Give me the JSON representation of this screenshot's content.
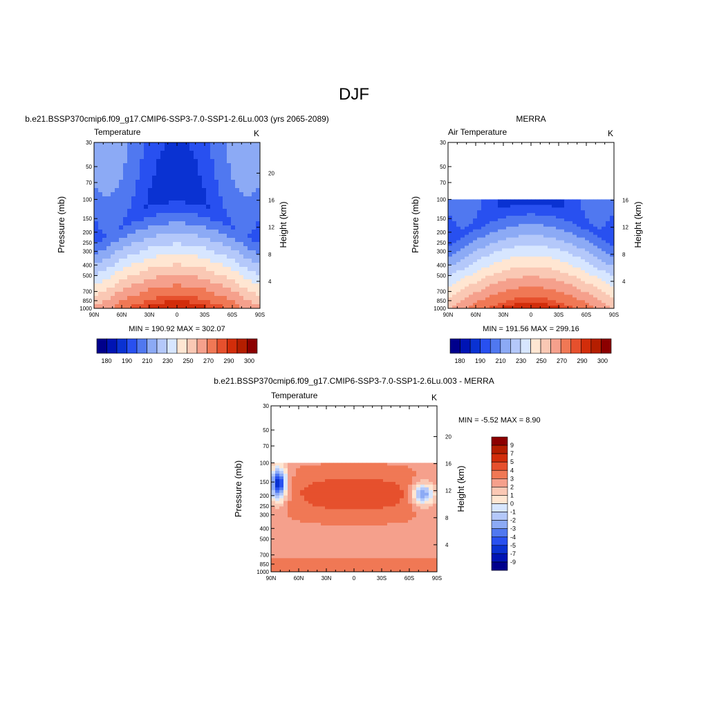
{
  "figure": {
    "title": "DJF"
  },
  "chart_data": [
    {
      "type": "heatmap",
      "panel_title": "b.e21.BSSP370cmip6.f09_g17.CMIP6-SSP3-7.0-SSP1-2.6Lu.003 (yrs 2065-2089)",
      "left_label": "Temperature",
      "units": "K",
      "ylabel": "Pressure (mb)",
      "ylabel_right": "Height (km)",
      "x_ticks": [
        "90N",
        "60N",
        "30N",
        "0",
        "30S",
        "60S",
        "90S"
      ],
      "y_ticks": [
        "30",
        "50",
        "70",
        "100",
        "150",
        "200",
        "250",
        "300",
        "400",
        "500",
        "700",
        "850",
        "1000"
      ],
      "height_ticks": [
        "20",
        "16",
        "12",
        "8",
        "4"
      ],
      "stats": "MIN = 190.92  MAX = 302.07",
      "min": 190.92,
      "max": 302.07,
      "data_top_pressure": 30
    },
    {
      "type": "heatmap",
      "panel_title": "MERRA",
      "left_label": "Air Temperature",
      "units": "K",
      "ylabel": "Pressure (mb)",
      "ylabel_right": "Height (km)",
      "x_ticks": [
        "90N",
        "60N",
        "30N",
        "0",
        "30S",
        "60S",
        "90S"
      ],
      "y_ticks": [
        "30",
        "50",
        "70",
        "100",
        "150",
        "200",
        "250",
        "300",
        "400",
        "500",
        "700",
        "850",
        "1000"
      ],
      "height_ticks": [
        "16",
        "12",
        "8",
        "4"
      ],
      "stats": "MIN = 191.56  MAX = 299.16",
      "min": 191.56,
      "max": 299.16,
      "data_top_pressure": 100
    },
    {
      "type": "heatmap",
      "panel_title": "b.e21.BSSP370cmip6.f09_g17.CMIP6-SSP3-7.0-SSP1-2.6Lu.003 - MERRA",
      "left_label": "Temperature",
      "units": "K",
      "ylabel": "Pressure (mb)",
      "ylabel_right": "Height (km)",
      "x_ticks": [
        "90N",
        "60N",
        "30N",
        "0",
        "30S",
        "60S",
        "90S"
      ],
      "y_ticks": [
        "30",
        "50",
        "70",
        "100",
        "150",
        "200",
        "250",
        "300",
        "400",
        "500",
        "700",
        "850",
        "1000"
      ],
      "height_ticks": [
        "20",
        "16",
        "12",
        "8",
        "4"
      ],
      "stats": "MIN =  -5.52  MAX =   8.90",
      "min": -5.52,
      "max": 8.9,
      "data_top_pressure": 100
    }
  ],
  "colorbars": {
    "absolute": {
      "labels": [
        "180",
        "190",
        "210",
        "230",
        "250",
        "270",
        "290",
        "300"
      ],
      "colors": [
        "#00008c",
        "#0014b4",
        "#0a32d2",
        "#2850f0",
        "#5078f0",
        "#8caaf5",
        "#b4c8fa",
        "#d7e6ff",
        "#ffe6d2",
        "#fac8b4",
        "#f5a08c",
        "#f07855",
        "#e6502d",
        "#d22d0a",
        "#b41e00",
        "#8c0000"
      ]
    },
    "difference": {
      "labels": [
        "9",
        "7",
        "5",
        "4",
        "3",
        "2",
        "1",
        "0",
        "-1",
        "-2",
        "-3",
        "-4",
        "-5",
        "-7",
        "-9"
      ],
      "colors": [
        "#8c0000",
        "#b41e00",
        "#d22d0a",
        "#e6502d",
        "#f07855",
        "#f5a08c",
        "#fac8b4",
        "#ffe6d2",
        "#d7e6ff",
        "#b4c8fa",
        "#8caaf5",
        "#5078f0",
        "#2850f0",
        "#0a32d2",
        "#0014b4",
        "#00008c"
      ]
    }
  }
}
